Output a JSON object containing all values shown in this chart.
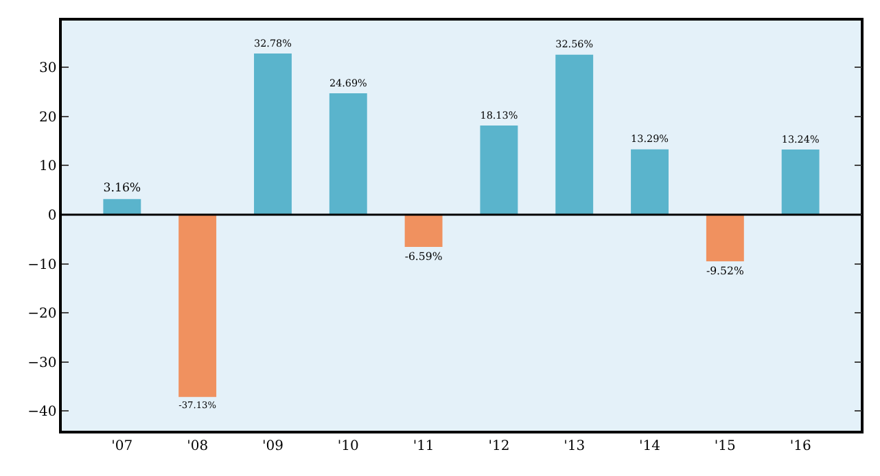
{
  "chart_data": {
    "type": "bar",
    "categories": [
      "'07",
      "'08",
      "'09",
      "'10",
      "'11",
      "'12",
      "'13",
      "'14",
      "'15",
      "'16"
    ],
    "values": [
      3.16,
      -37.13,
      32.78,
      24.69,
      -6.59,
      18.13,
      32.56,
      13.29,
      -9.52,
      13.24
    ],
    "colors": [
      "#5ab4cc",
      "#f0915f",
      "#5ab4cc",
      "#5ab4cc",
      "#f0915f",
      "#5ab4cc",
      "#5ab4cc",
      "#5ab4cc",
      "#f0915f",
      "#5ab4cc"
    ],
    "value_labels": [
      "3.16%",
      "-37.13%",
      "32.78%",
      "24.69%",
      "-6.59%",
      "18.13%",
      "32.56%",
      "13.29%",
      "-9.52%",
      "13.24%"
    ],
    "ylim": [
      -44,
      39.5
    ],
    "yticks": [
      {
        "value": -40,
        "label": "−40"
      },
      {
        "value": -30,
        "label": "−30"
      },
      {
        "value": -20,
        "label": "−20"
      },
      {
        "value": -10,
        "label": "−10"
      },
      0,
      10,
      20,
      30
    ],
    "ref_lines": [
      {
        "axis": "y",
        "value": 0,
        "color": "#000000"
      }
    ],
    "grid": false,
    "legend": false
  }
}
